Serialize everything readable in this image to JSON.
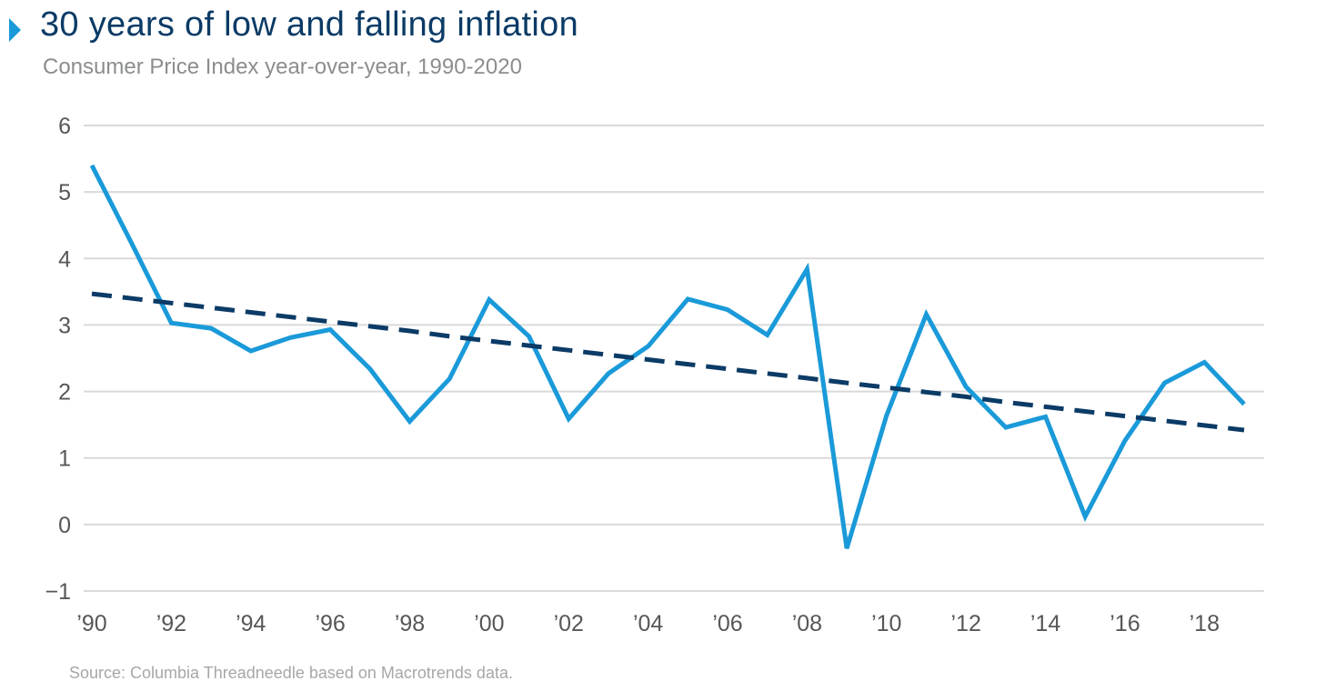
{
  "header": {
    "title": "30 years of low and falling inflation",
    "subtitle": "Consumer Price Index year-over-year, 1990-2020"
  },
  "footer": {
    "source": "Source: Columbia Threadneedle based on Macrotrends data."
  },
  "colors": {
    "accent": "#1a9ad9",
    "line": "#1a9ad9",
    "trend": "#0b3b66",
    "grid": "#d9d9d9",
    "title": "#0b3b66"
  },
  "chart_data": {
    "type": "line",
    "title": "30 years of low and falling inflation",
    "subtitle": "Consumer Price Index year-over-year, 1990-2020",
    "xlabel": "",
    "ylabel": "",
    "x": [
      1990,
      1991,
      1992,
      1993,
      1994,
      1995,
      1996,
      1997,
      1998,
      1999,
      2000,
      2001,
      2002,
      2003,
      2004,
      2005,
      2006,
      2007,
      2008,
      2009,
      2010,
      2011,
      2012,
      2013,
      2014,
      2015,
      2016,
      2017,
      2018,
      2019
    ],
    "series": [
      {
        "style": "solid",
        "values": [
          5.4,
          4.23,
          3.03,
          2.95,
          2.61,
          2.81,
          2.93,
          2.34,
          1.55,
          2.19,
          3.38,
          2.83,
          1.59,
          2.27,
          2.68,
          3.39,
          3.23,
          2.85,
          3.84,
          -0.36,
          1.64,
          3.16,
          2.07,
          1.46,
          1.62,
          0.12,
          1.26,
          2.13,
          2.44,
          1.81
        ]
      },
      {
        "style": "dashed",
        "values": [
          3.47,
          3.4,
          3.33,
          3.26,
          3.19,
          3.12,
          3.05,
          2.98,
          2.91,
          2.83,
          2.76,
          2.69,
          2.62,
          2.55,
          2.48,
          2.41,
          2.34,
          2.27,
          2.2,
          2.13,
          2.06,
          1.99,
          1.92,
          1.84,
          1.77,
          1.7,
          1.63,
          1.56,
          1.49,
          1.42
        ]
      }
    ],
    "ylim": [
      -1,
      6
    ],
    "yticks": [
      "−1",
      "0",
      "1",
      "2",
      "3",
      "4",
      "5",
      "6"
    ],
    "ytick_values": [
      -1,
      0,
      1,
      2,
      3,
      4,
      5,
      6
    ],
    "xticks": [
      "’90",
      "’92",
      "’94",
      "’96",
      "’98",
      "’00",
      "’02",
      "’04",
      "’06",
      "’08",
      "’10",
      "’12",
      "’14",
      "’16",
      "’18"
    ],
    "xtick_values": [
      1990,
      1992,
      1994,
      1996,
      1998,
      2000,
      2002,
      2004,
      2006,
      2008,
      2010,
      2012,
      2014,
      2016,
      2018
    ],
    "grid": true,
    "legend": "none"
  }
}
